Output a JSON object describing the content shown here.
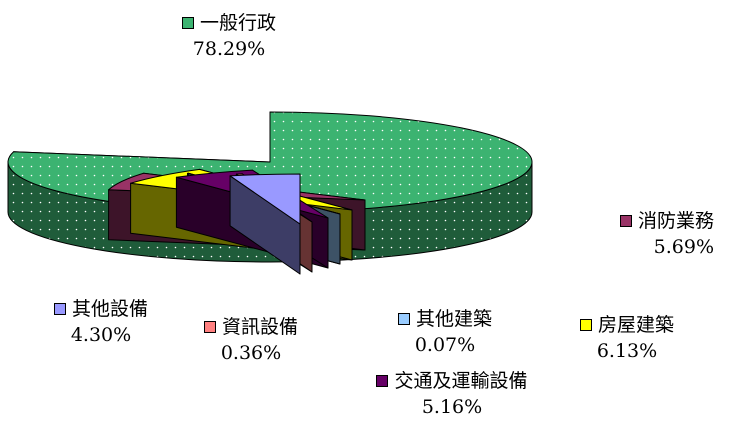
{
  "chart_data": {
    "type": "pie",
    "three_d": true,
    "slices": [
      {
        "label": "一般行政",
        "value": 78.29,
        "pct_text": "78.29%",
        "color": "#3CB371",
        "pattern": "dots"
      },
      {
        "label": "消防業務",
        "value": 5.69,
        "pct_text": "5.69%",
        "color": "#993366"
      },
      {
        "label": "房屋建築",
        "value": 6.13,
        "pct_text": "6.13%",
        "color": "#FFFF00"
      },
      {
        "label": "其他建築",
        "value": 0.07,
        "pct_text": "0.07%",
        "color": "#99CCFF"
      },
      {
        "label": "交通及運輸設備",
        "value": 5.16,
        "pct_text": "5.16%",
        "color": "#660066"
      },
      {
        "label": "資訊設備",
        "value": 0.36,
        "pct_text": "0.36%",
        "color": "#FF8080"
      },
      {
        "label": "其他設備",
        "value": 4.3,
        "pct_text": "4.30%",
        "color": "#9999FF"
      }
    ]
  }
}
